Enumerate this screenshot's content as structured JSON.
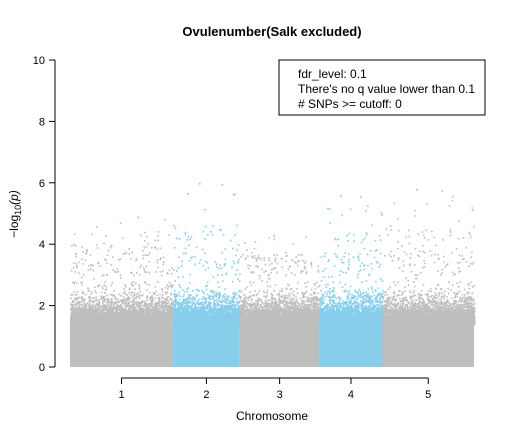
{
  "chart_data": {
    "type": "scatter",
    "title": "Ovulenumber(Salk excluded)",
    "xlabel": "Chromosome",
    "ylabel": "−log10(p)",
    "ylabel_main": "−log",
    "ylabel_sub": "10",
    "ylabel_paren": "(p)",
    "ylim": [
      0,
      10
    ],
    "yticks": [
      0,
      2,
      4,
      6,
      8,
      10
    ],
    "chromosomes": [
      {
        "label": "1",
        "length": 30.4,
        "color": "#bebebe",
        "peak": 4.9
      },
      {
        "label": "2",
        "length": 19.7,
        "color": "#87ceeb",
        "peak": 6.0
      },
      {
        "label": "3",
        "length": 23.5,
        "color": "#bebebe",
        "peak": 4.3
      },
      {
        "label": "4",
        "length": 18.6,
        "color": "#87ceeb",
        "peak": 5.6
      },
      {
        "label": "5",
        "length": 27.0,
        "color": "#bebebe",
        "peak": 5.8
      }
    ],
    "legend": {
      "position": "top-right",
      "lines": [
        "fdr_level: 0.1",
        "There's no q value lower than 0.1",
        "# SNPs >= cutoff: 0"
      ]
    },
    "grid": false
  }
}
